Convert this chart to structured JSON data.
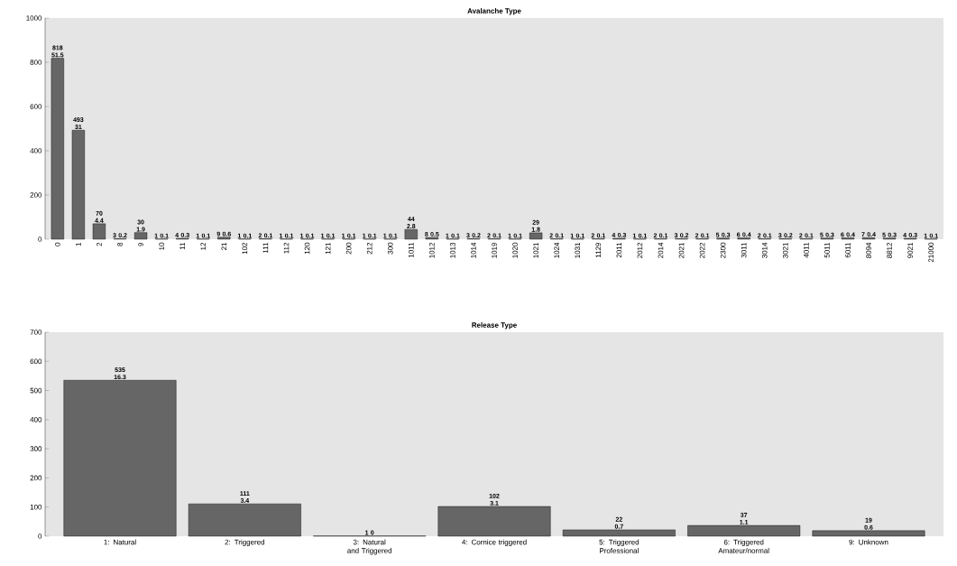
{
  "chart_data": [
    {
      "type": "bar",
      "title": "Avalanche Type",
      "color": "#666666",
      "ylim": [
        0,
        1000
      ],
      "yticks": [
        0,
        200,
        400,
        600,
        800,
        1000
      ],
      "categories": [
        "0",
        "1",
        "2",
        "8",
        "9",
        "10",
        "11",
        "12",
        "21",
        "102",
        "111",
        "112",
        "120",
        "121",
        "200",
        "212",
        "300",
        "1011",
        "1012",
        "1013",
        "1014",
        "1019",
        "1020",
        "1021",
        "1024",
        "1031",
        "1129",
        "2011",
        "2012",
        "2014",
        "2021",
        "2022",
        "2300",
        "3011",
        "3014",
        "3021",
        "4011",
        "5011",
        "6011",
        "8094",
        "8812",
        "9021",
        "21000"
      ],
      "values": [
        818,
        493,
        70,
        3,
        30,
        1,
        4,
        1,
        9,
        1,
        2,
        1,
        1,
        1,
        1,
        1,
        1,
        44,
        8,
        1,
        3,
        2,
        1,
        29,
        2,
        1,
        2,
        4,
        1,
        2,
        3,
        2,
        5,
        6,
        2,
        3,
        2,
        5,
        6,
        7,
        5,
        4,
        1
      ],
      "value_labels": [
        "818 51.5",
        "493 31",
        "70 4.4",
        "3 0.2",
        "30 1.9",
        "1 0.1",
        "4 0.3",
        "1 0.1",
        "9 0.6",
        "1 0.1",
        "2 0.1",
        "1 0.1",
        "1 0.1",
        "1 0.1",
        "1 0.1",
        "1 0.1",
        "1 0.1",
        "44 2.8",
        "8 0.5",
        "1 0.1",
        "3 0.2",
        "2 0.1",
        "1 0.1",
        "29 1.8",
        "2 0.1",
        "1 0.1",
        "2 0.1",
        "4 0.3",
        "1 0.1",
        "2 0.1",
        "3 0.2",
        "2 0.1",
        "5 0.3",
        "6 0.4",
        "2 0.1",
        "3 0.2",
        "2 0.1",
        "5 0.3",
        "6 0.4",
        "7 0.4",
        "5 0.3",
        "4 0.3",
        "1 0.1"
      ]
    },
    {
      "type": "bar",
      "title": "Release Type",
      "color": "#666666",
      "ylim": [
        0,
        700
      ],
      "yticks": [
        0,
        100,
        200,
        300,
        400,
        500,
        600,
        700
      ],
      "categories": [
        "1: Natural",
        "2: Triggered",
        "3: Natural and Triggered",
        "4: Cornice triggered",
        "5: Triggered Professional",
        "6: Triggered Amateur/normal",
        "9: Unknown"
      ],
      "values": [
        535,
        111,
        1,
        102,
        22,
        37,
        19
      ],
      "value_labels": [
        "535 16.3",
        "111 3.4",
        "1 0",
        "102 3.1",
        "22 0.7",
        "37 1.1",
        "19 0.6"
      ]
    }
  ]
}
